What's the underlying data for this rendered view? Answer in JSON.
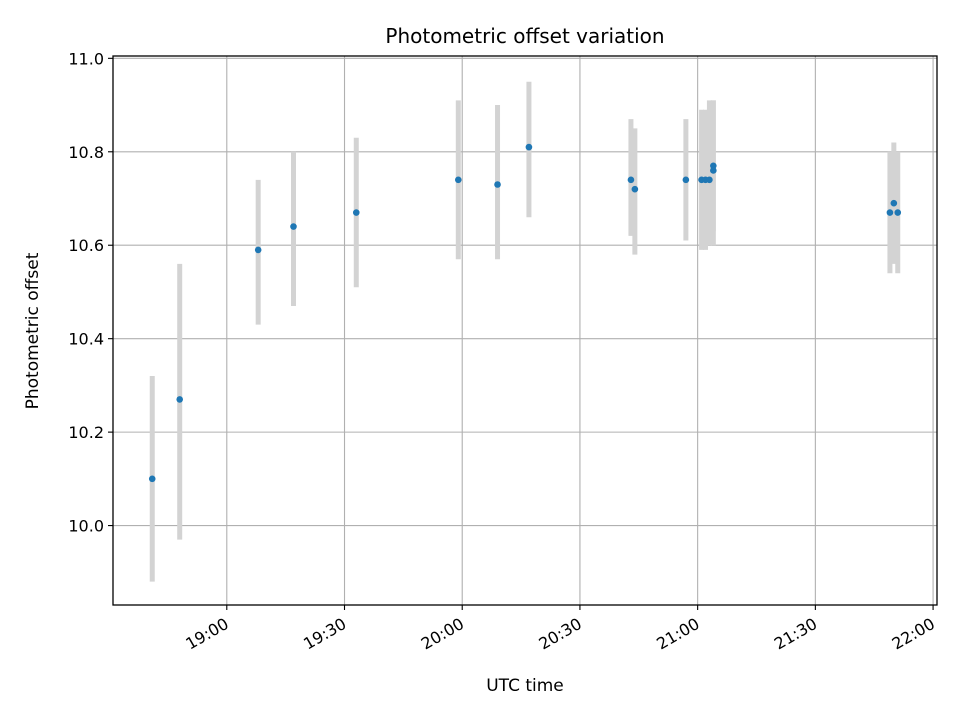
{
  "chart_data": {
    "type": "scatter",
    "title": "Photometric offset variation",
    "xlabel": "UTC time",
    "ylabel": "Photometric offset",
    "x_axis_type": "time",
    "xlim": [
      "18:31",
      "22:01"
    ],
    "ylim": [
      9.83,
      11.005
    ],
    "x_ticks": [
      "19:00",
      "19:30",
      "20:00",
      "20:30",
      "21:00",
      "21:30",
      "22:00"
    ],
    "y_ticks": [
      10.0,
      10.2,
      10.4,
      10.6,
      10.8,
      11.0
    ],
    "y_tick_labels": [
      "10.0",
      "10.2",
      "10.4",
      "10.6",
      "10.8",
      "11.0"
    ],
    "grid": true,
    "marker_color": "#1f77b4",
    "errorbar_color": "#d3d3d3",
    "series": [
      {
        "points": [
          {
            "x": "18:41",
            "y": 10.1,
            "ylow": 9.88,
            "yhigh": 10.32
          },
          {
            "x": "18:48",
            "y": 10.27,
            "ylow": 9.97,
            "yhigh": 10.56
          },
          {
            "x": "19:08",
            "y": 10.59,
            "ylow": 10.43,
            "yhigh": 10.74
          },
          {
            "x": "19:17",
            "y": 10.64,
            "ylow": 10.47,
            "yhigh": 10.8
          },
          {
            "x": "19:33",
            "y": 10.67,
            "ylow": 10.51,
            "yhigh": 10.83
          },
          {
            "x": "19:59",
            "y": 10.74,
            "ylow": 10.57,
            "yhigh": 10.91
          },
          {
            "x": "20:09",
            "y": 10.73,
            "ylow": 10.57,
            "yhigh": 10.9
          },
          {
            "x": "20:17",
            "y": 10.81,
            "ylow": 10.66,
            "yhigh": 10.95
          },
          {
            "x": "20:43",
            "y": 10.74,
            "ylow": 10.62,
            "yhigh": 10.87
          },
          {
            "x": "20:44",
            "y": 10.72,
            "ylow": 10.58,
            "yhigh": 10.85
          },
          {
            "x": "20:57",
            "y": 10.74,
            "ylow": 10.61,
            "yhigh": 10.87
          },
          {
            "x": "21:01",
            "y": 10.74,
            "ylow": 10.59,
            "yhigh": 10.89
          },
          {
            "x": "21:02",
            "y": 10.74,
            "ylow": 10.59,
            "yhigh": 10.89
          },
          {
            "x": "21:03",
            "y": 10.74,
            "ylow": 10.6,
            "yhigh": 10.91
          },
          {
            "x": "21:04",
            "y": 10.76,
            "ylow": 10.6,
            "yhigh": 10.91
          },
          {
            "x": "21:04",
            "y": 10.77,
            "ylow": 10.63,
            "yhigh": 10.91
          },
          {
            "x": "21:49",
            "y": 10.67,
            "ylow": 10.54,
            "yhigh": 10.8
          },
          {
            "x": "21:50",
            "y": 10.69,
            "ylow": 10.56,
            "yhigh": 10.82
          },
          {
            "x": "21:51",
            "y": 10.67,
            "ylow": 10.54,
            "yhigh": 10.8
          }
        ]
      }
    ]
  }
}
